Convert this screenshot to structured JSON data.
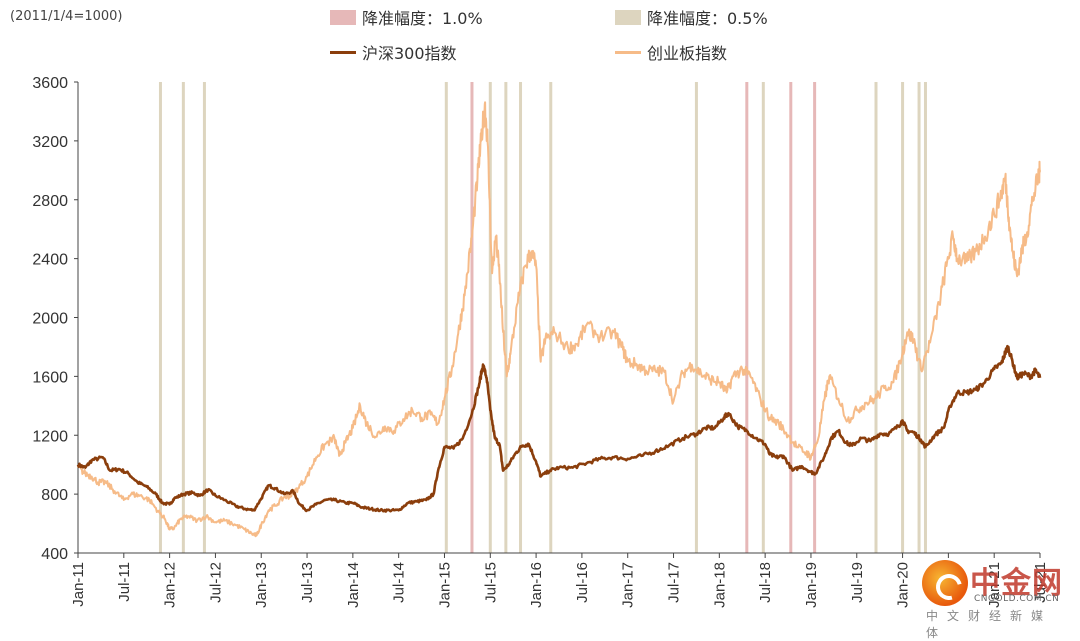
{
  "note": "(2011/1/4=1000)",
  "legend": [
    {
      "label": "降准幅度：1.0%",
      "kind": "band",
      "color": "#e6b8b8"
    },
    {
      "label": "降准幅度：0.5%",
      "kind": "band",
      "color": "#ddd5bf"
    },
    {
      "label": "沪深300指数",
      "kind": "line",
      "color": "#8b3e0c"
    },
    {
      "label": "创业板指数",
      "kind": "line",
      "color": "#f6bb88"
    }
  ],
  "watermark": {
    "brand": "中金网",
    "url": "CNGOLD.COM.CN",
    "tagline": "中文财经新媒体"
  },
  "chart_data": {
    "type": "line",
    "title": "",
    "xlabel": "",
    "ylabel": "",
    "ylim": [
      400,
      3600
    ],
    "yticks": [
      400,
      800,
      1200,
      1600,
      2000,
      2400,
      2800,
      3200,
      3600
    ],
    "xlim": [
      2011.0,
      2021.5
    ],
    "xticks": [
      {
        "t": 2011.0,
        "label": "Jan-11"
      },
      {
        "t": 2011.5,
        "label": "Jul-11"
      },
      {
        "t": 2012.0,
        "label": "Jan-12"
      },
      {
        "t": 2012.5,
        "label": "Jul-12"
      },
      {
        "t": 2013.0,
        "label": "Jan-13"
      },
      {
        "t": 2013.5,
        "label": "Jul-13"
      },
      {
        "t": 2014.0,
        "label": "Jan-14"
      },
      {
        "t": 2014.5,
        "label": "Jul-14"
      },
      {
        "t": 2015.0,
        "label": "Jan-15"
      },
      {
        "t": 2015.5,
        "label": "Jul-15"
      },
      {
        "t": 2016.0,
        "label": "Jan-16"
      },
      {
        "t": 2016.5,
        "label": "Jul-16"
      },
      {
        "t": 2017.0,
        "label": "Jan-17"
      },
      {
        "t": 2017.5,
        "label": "Jul-17"
      },
      {
        "t": 2018.0,
        "label": "Jan-18"
      },
      {
        "t": 2018.5,
        "label": "Jul-18"
      },
      {
        "t": 2019.0,
        "label": "Jan-19"
      },
      {
        "t": 2019.5,
        "label": "Jul-19"
      },
      {
        "t": 2020.0,
        "label": "Jan-20"
      },
      {
        "t": 2020.5,
        "label": "Jul-20"
      },
      {
        "t": 2021.0,
        "label": "Jan-21"
      },
      {
        "t": 2021.5,
        "label": "Jul-21"
      }
    ],
    "rrr_cuts": [
      {
        "t": 2011.9,
        "size": "0.5%"
      },
      {
        "t": 2012.15,
        "size": "0.5%"
      },
      {
        "t": 2012.38,
        "size": "0.5%"
      },
      {
        "t": 2015.02,
        "size": "0.5%"
      },
      {
        "t": 2015.3,
        "size": "1.0%"
      },
      {
        "t": 2015.5,
        "size": "0.5%"
      },
      {
        "t": 2015.67,
        "size": "0.5%"
      },
      {
        "t": 2015.83,
        "size": "0.5%"
      },
      {
        "t": 2016.16,
        "size": "0.5%"
      },
      {
        "t": 2017.75,
        "size": "0.5%"
      },
      {
        "t": 2018.3,
        "size": "1.0%"
      },
      {
        "t": 2018.48,
        "size": "0.5%"
      },
      {
        "t": 2018.78,
        "size": "1.0%"
      },
      {
        "t": 2019.04,
        "size": "1.0%"
      },
      {
        "t": 2019.71,
        "size": "0.5%"
      },
      {
        "t": 2020.0,
        "size": "0.5%"
      },
      {
        "t": 2020.18,
        "size": "0.5%"
      },
      {
        "t": 2020.25,
        "size": "0.5%"
      }
    ],
    "series": [
      {
        "name": "沪深300指数",
        "color": "#8b3e0c",
        "points": [
          [
            2011.0,
            1000
          ],
          [
            2011.08,
            980
          ],
          [
            2011.15,
            1030
          ],
          [
            2011.27,
            1050
          ],
          [
            2011.35,
            960
          ],
          [
            2011.45,
            970
          ],
          [
            2011.55,
            940
          ],
          [
            2011.65,
            880
          ],
          [
            2011.75,
            850
          ],
          [
            2011.85,
            800
          ],
          [
            2011.92,
            740
          ],
          [
            2012.0,
            730
          ],
          [
            2012.05,
            770
          ],
          [
            2012.15,
            800
          ],
          [
            2012.25,
            810
          ],
          [
            2012.33,
            790
          ],
          [
            2012.42,
            830
          ],
          [
            2012.5,
            790
          ],
          [
            2012.6,
            760
          ],
          [
            2012.72,
            720
          ],
          [
            2012.82,
            700
          ],
          [
            2012.92,
            690
          ],
          [
            2013.0,
            770
          ],
          [
            2013.08,
            860
          ],
          [
            2013.15,
            840
          ],
          [
            2013.25,
            800
          ],
          [
            2013.35,
            820
          ],
          [
            2013.42,
            730
          ],
          [
            2013.5,
            690
          ],
          [
            2013.6,
            730
          ],
          [
            2013.7,
            760
          ],
          [
            2013.8,
            760
          ],
          [
            2013.92,
            740
          ],
          [
            2014.0,
            740
          ],
          [
            2014.1,
            710
          ],
          [
            2014.2,
            700
          ],
          [
            2014.3,
            690
          ],
          [
            2014.4,
            690
          ],
          [
            2014.5,
            690
          ],
          [
            2014.6,
            740
          ],
          [
            2014.7,
            750
          ],
          [
            2014.8,
            760
          ],
          [
            2014.88,
            800
          ],
          [
            2014.93,
            960
          ],
          [
            2015.0,
            1120
          ],
          [
            2015.1,
            1110
          ],
          [
            2015.2,
            1180
          ],
          [
            2015.3,
            1350
          ],
          [
            2015.38,
            1550
          ],
          [
            2015.42,
            1680
          ],
          [
            2015.46,
            1590
          ],
          [
            2015.5,
            1370
          ],
          [
            2015.55,
            1180
          ],
          [
            2015.6,
            1140
          ],
          [
            2015.64,
            960
          ],
          [
            2015.7,
            1000
          ],
          [
            2015.78,
            1080
          ],
          [
            2015.85,
            1130
          ],
          [
            2015.92,
            1140
          ],
          [
            2016.0,
            1020
          ],
          [
            2016.05,
            920
          ],
          [
            2016.15,
            960
          ],
          [
            2016.25,
            980
          ],
          [
            2016.4,
            980
          ],
          [
            2016.55,
            1010
          ],
          [
            2016.7,
            1040
          ],
          [
            2016.85,
            1050
          ],
          [
            2017.0,
            1040
          ],
          [
            2017.15,
            1060
          ],
          [
            2017.3,
            1090
          ],
          [
            2017.45,
            1130
          ],
          [
            2017.6,
            1180
          ],
          [
            2017.75,
            1210
          ],
          [
            2017.85,
            1250
          ],
          [
            2017.95,
            1250
          ],
          [
            2018.05,
            1320
          ],
          [
            2018.1,
            1350
          ],
          [
            2018.2,
            1260
          ],
          [
            2018.3,
            1230
          ],
          [
            2018.4,
            1180
          ],
          [
            2018.5,
            1140
          ],
          [
            2018.55,
            1070
          ],
          [
            2018.62,
            1050
          ],
          [
            2018.7,
            1060
          ],
          [
            2018.8,
            960
          ],
          [
            2018.9,
            990
          ],
          [
            2019.0,
            950
          ],
          [
            2019.05,
            940
          ],
          [
            2019.15,
            1060
          ],
          [
            2019.22,
            1180
          ],
          [
            2019.3,
            1230
          ],
          [
            2019.38,
            1150
          ],
          [
            2019.45,
            1130
          ],
          [
            2019.55,
            1180
          ],
          [
            2019.65,
            1160
          ],
          [
            2019.75,
            1210
          ],
          [
            2019.85,
            1210
          ],
          [
            2019.95,
            1260
          ],
          [
            2020.0,
            1300
          ],
          [
            2020.05,
            1230
          ],
          [
            2020.12,
            1220
          ],
          [
            2020.2,
            1170
          ],
          [
            2020.25,
            1120
          ],
          [
            2020.35,
            1200
          ],
          [
            2020.45,
            1250
          ],
          [
            2020.52,
            1400
          ],
          [
            2020.6,
            1490
          ],
          [
            2020.7,
            1490
          ],
          [
            2020.8,
            1510
          ],
          [
            2020.9,
            1560
          ],
          [
            2021.0,
            1650
          ],
          [
            2021.08,
            1690
          ],
          [
            2021.12,
            1760
          ],
          [
            2021.15,
            1800
          ],
          [
            2021.2,
            1700
          ],
          [
            2021.25,
            1590
          ],
          [
            2021.32,
            1620
          ],
          [
            2021.4,
            1600
          ],
          [
            2021.45,
            1640
          ],
          [
            2021.5,
            1590
          ]
        ]
      },
      {
        "name": "创业板指数",
        "color": "#f6bb88",
        "points": [
          [
            2011.0,
            980
          ],
          [
            2011.08,
            940
          ],
          [
            2011.15,
            920
          ],
          [
            2011.22,
            880
          ],
          [
            2011.3,
            880
          ],
          [
            2011.4,
            820
          ],
          [
            2011.5,
            760
          ],
          [
            2011.58,
            800
          ],
          [
            2011.68,
            790
          ],
          [
            2011.78,
            760
          ],
          [
            2011.88,
            680
          ],
          [
            2011.95,
            630
          ],
          [
            2012.0,
            560
          ],
          [
            2012.05,
            570
          ],
          [
            2012.12,
            630
          ],
          [
            2012.2,
            650
          ],
          [
            2012.3,
            620
          ],
          [
            2012.4,
            650
          ],
          [
            2012.5,
            610
          ],
          [
            2012.6,
            620
          ],
          [
            2012.72,
            590
          ],
          [
            2012.82,
            560
          ],
          [
            2012.9,
            530
          ],
          [
            2012.95,
            520
          ],
          [
            2013.0,
            590
          ],
          [
            2013.08,
            690
          ],
          [
            2013.15,
            720
          ],
          [
            2013.25,
            780
          ],
          [
            2013.32,
            790
          ],
          [
            2013.4,
            840
          ],
          [
            2013.5,
            920
          ],
          [
            2013.6,
            1050
          ],
          [
            2013.7,
            1140
          ],
          [
            2013.8,
            1180
          ],
          [
            2013.85,
            1060
          ],
          [
            2013.92,
            1150
          ],
          [
            2014.0,
            1250
          ],
          [
            2014.08,
            1400
          ],
          [
            2014.15,
            1280
          ],
          [
            2014.25,
            1190
          ],
          [
            2014.35,
            1260
          ],
          [
            2014.45,
            1230
          ],
          [
            2014.55,
            1310
          ],
          [
            2014.65,
            1370
          ],
          [
            2014.75,
            1320
          ],
          [
            2014.85,
            1340
          ],
          [
            2014.93,
            1280
          ],
          [
            2015.0,
            1450
          ],
          [
            2015.08,
            1650
          ],
          [
            2015.15,
            1890
          ],
          [
            2015.22,
            2150
          ],
          [
            2015.3,
            2550
          ],
          [
            2015.36,
            2950
          ],
          [
            2015.4,
            3200
          ],
          [
            2015.44,
            3450
          ],
          [
            2015.47,
            3200
          ],
          [
            2015.52,
            2300
          ],
          [
            2015.56,
            2550
          ],
          [
            2015.6,
            2300
          ],
          [
            2015.64,
            1900
          ],
          [
            2015.68,
            1600
          ],
          [
            2015.72,
            1750
          ],
          [
            2015.8,
            2100
          ],
          [
            2015.88,
            2350
          ],
          [
            2015.95,
            2450
          ],
          [
            2016.0,
            2350
          ],
          [
            2016.05,
            1700
          ],
          [
            2016.1,
            1850
          ],
          [
            2016.2,
            1900
          ],
          [
            2016.35,
            1790
          ],
          [
            2016.45,
            1820
          ],
          [
            2016.55,
            1950
          ],
          [
            2016.7,
            1870
          ],
          [
            2016.85,
            1900
          ],
          [
            2016.95,
            1780
          ],
          [
            2017.0,
            1700
          ],
          [
            2017.1,
            1680
          ],
          [
            2017.2,
            1640
          ],
          [
            2017.3,
            1640
          ],
          [
            2017.4,
            1630
          ],
          [
            2017.5,
            1430
          ],
          [
            2017.6,
            1620
          ],
          [
            2017.7,
            1680
          ],
          [
            2017.8,
            1620
          ],
          [
            2017.9,
            1580
          ],
          [
            2018.0,
            1560
          ],
          [
            2018.08,
            1490
          ],
          [
            2018.15,
            1600
          ],
          [
            2018.25,
            1650
          ],
          [
            2018.35,
            1590
          ],
          [
            2018.45,
            1440
          ],
          [
            2018.55,
            1320
          ],
          [
            2018.65,
            1280
          ],
          [
            2018.75,
            1200
          ],
          [
            2018.85,
            1120
          ],
          [
            2018.95,
            1080
          ],
          [
            2019.0,
            1050
          ],
          [
            2019.08,
            1180
          ],
          [
            2019.15,
            1450
          ],
          [
            2019.2,
            1600
          ],
          [
            2019.3,
            1450
          ],
          [
            2019.4,
            1300
          ],
          [
            2019.5,
            1370
          ],
          [
            2019.6,
            1420
          ],
          [
            2019.7,
            1450
          ],
          [
            2019.8,
            1520
          ],
          [
            2019.9,
            1560
          ],
          [
            2020.0,
            1760
          ],
          [
            2020.05,
            1900
          ],
          [
            2020.12,
            1850
          ],
          [
            2020.2,
            1650
          ],
          [
            2020.3,
            1830
          ],
          [
            2020.4,
            2100
          ],
          [
            2020.48,
            2350
          ],
          [
            2020.55,
            2550
          ],
          [
            2020.6,
            2400
          ],
          [
            2020.7,
            2380
          ],
          [
            2020.8,
            2450
          ],
          [
            2020.9,
            2550
          ],
          [
            2021.0,
            2700
          ],
          [
            2021.08,
            2850
          ],
          [
            2021.12,
            2950
          ],
          [
            2021.16,
            2680
          ],
          [
            2021.2,
            2450
          ],
          [
            2021.25,
            2280
          ],
          [
            2021.3,
            2450
          ],
          [
            2021.36,
            2580
          ],
          [
            2021.42,
            2800
          ],
          [
            2021.48,
            2950
          ],
          [
            2021.5,
            3000
          ]
        ]
      }
    ]
  }
}
